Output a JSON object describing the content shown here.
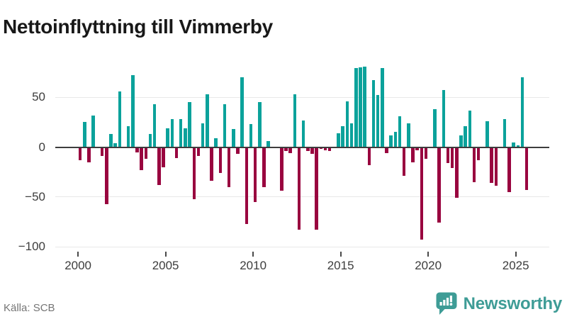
{
  "title": "Nettoinflyttning till Vimmerby",
  "source": "Källa: SCB",
  "logo": {
    "text": "Newsworthy"
  },
  "colors": {
    "positive": "#0ba29b",
    "negative": "#99043f",
    "axis_line": "#3e3e3e",
    "gridline": "#e8e8e8",
    "logo_teal": "#3e9c96"
  },
  "chart_data": {
    "type": "bar",
    "title": "Nettoinflyttning till Vimmerby",
    "xlabel": "",
    "ylabel": "",
    "x_unit": "quarter",
    "grid": true,
    "legend": "none",
    "ylim": [
      -110,
      90
    ],
    "yticks": [
      50,
      0,
      -50,
      -100
    ],
    "ytick_labels": [
      "50",
      "0",
      "−50",
      "−100"
    ],
    "xticks": [
      2000,
      2005,
      2010,
      2015,
      2020,
      2025
    ],
    "xtick_labels": [
      "2000",
      "2005",
      "2010",
      "2015",
      "2020",
      "2025"
    ],
    "categories": [
      "2000 Q1",
      "2000 Q2",
      "2000 Q3",
      "2000 Q4",
      "2001 Q1",
      "2001 Q2",
      "2001 Q3",
      "2001 Q4",
      "2002 Q1",
      "2002 Q2",
      "2002 Q3",
      "2002 Q4",
      "2003 Q1",
      "2003 Q2",
      "2003 Q3",
      "2003 Q4",
      "2004 Q1",
      "2004 Q2",
      "2004 Q3",
      "2004 Q4",
      "2005 Q1",
      "2005 Q2",
      "2005 Q3",
      "2005 Q4",
      "2006 Q1",
      "2006 Q2",
      "2006 Q3",
      "2006 Q4",
      "2007 Q1",
      "2007 Q2",
      "2007 Q3",
      "2007 Q4",
      "2008 Q1",
      "2008 Q2",
      "2008 Q3",
      "2008 Q4",
      "2009 Q1",
      "2009 Q2",
      "2009 Q3",
      "2009 Q4",
      "2010 Q1",
      "2010 Q2",
      "2010 Q3",
      "2010 Q4",
      "2011 Q1",
      "2011 Q2",
      "2011 Q3",
      "2011 Q4",
      "2012 Q1",
      "2012 Q2",
      "2012 Q3",
      "2012 Q4",
      "2013 Q1",
      "2013 Q2",
      "2013 Q3",
      "2013 Q4",
      "2014 Q1",
      "2014 Q2",
      "2014 Q3",
      "2014 Q4",
      "2015 Q1",
      "2015 Q2",
      "2015 Q3",
      "2015 Q4",
      "2016 Q1",
      "2016 Q2",
      "2016 Q3",
      "2016 Q4",
      "2017 Q1",
      "2017 Q2",
      "2017 Q3",
      "2017 Q4",
      "2018 Q1",
      "2018 Q2",
      "2018 Q3",
      "2018 Q4",
      "2019 Q1",
      "2019 Q2",
      "2019 Q3",
      "2019 Q4",
      "2020 Q1",
      "2020 Q2",
      "2020 Q3",
      "2020 Q4",
      "2021 Q1",
      "2021 Q2",
      "2021 Q3",
      "2021 Q4",
      "2022 Q1",
      "2022 Q2",
      "2022 Q3",
      "2022 Q4",
      "2023 Q1",
      "2023 Q2",
      "2023 Q3",
      "2023 Q4",
      "2024 Q1",
      "2024 Q2",
      "2024 Q3",
      "2024 Q4",
      "2025 Q1",
      "2025 Q2",
      "2025 Q3"
    ],
    "values": [
      -13,
      25,
      -15,
      32,
      0,
      -9,
      -57,
      13,
      4,
      56,
      0,
      21,
      72,
      -5,
      -23,
      -12,
      13,
      43,
      -38,
      -20,
      19,
      28,
      -11,
      28,
      19,
      45,
      -52,
      -9,
      24,
      53,
      -34,
      9,
      -26,
      43,
      -40,
      18,
      -7,
      70,
      -77,
      23,
      -55,
      45,
      -40,
      6,
      0,
      0,
      -44,
      -4,
      -6,
      53,
      -83,
      27,
      -4,
      -7,
      -83,
      -2,
      -3,
      -4,
      0,
      14,
      21,
      46,
      24,
      79,
      80,
      81,
      -18,
      67,
      52,
      79,
      -6,
      12,
      15,
      31,
      -29,
      24,
      -15,
      -3,
      -93,
      -12,
      0,
      38,
      -76,
      57,
      -16,
      -21,
      -51,
      12,
      21,
      37,
      -35,
      -13,
      0,
      26,
      -36,
      -39,
      0,
      28,
      -45,
      5,
      2,
      70,
      -43
    ]
  }
}
